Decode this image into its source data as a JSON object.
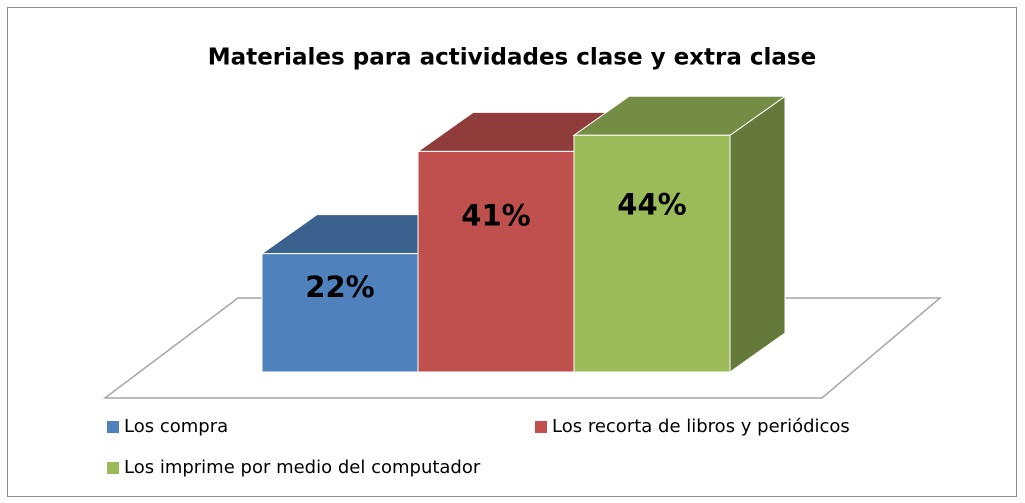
{
  "chart_data": {
    "type": "bar",
    "title": "Materiales para actividades clase y extra clase",
    "categories": [
      null
    ],
    "series": [
      {
        "name": "Los compra",
        "color": "#4f81bd",
        "values": [
          22
        ],
        "value_labels": [
          "22%"
        ]
      },
      {
        "name": "Los recorta de libros y periódicos",
        "color": "#c0504d",
        "values": [
          41
        ],
        "value_labels": [
          "41%"
        ]
      },
      {
        "name": "Los imprime por medio del computador",
        "color": "#9bbb59",
        "values": [
          44
        ],
        "value_labels": [
          "44%"
        ]
      }
    ]
  }
}
